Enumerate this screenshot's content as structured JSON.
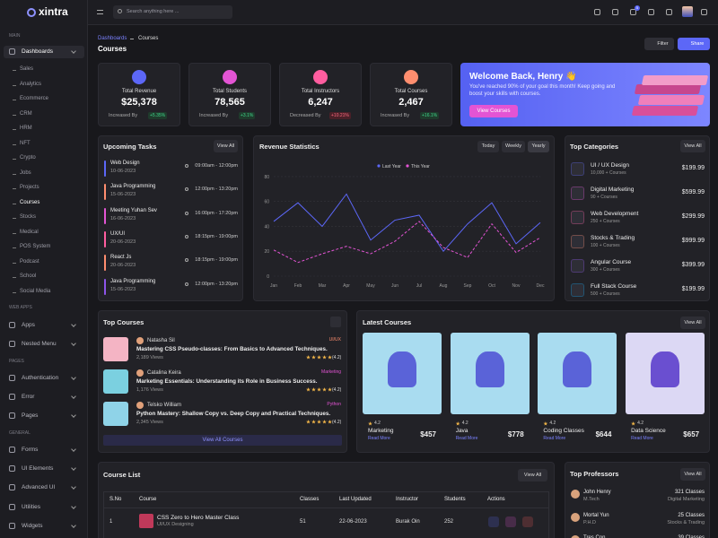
{
  "brand": "xintra",
  "sidebar": {
    "sections": [
      {
        "title": "MAIN",
        "items": [
          {
            "label": "Dashboards",
            "children": [
              "Sales",
              "Analytics",
              "Ecommerce",
              "CRM",
              "HRM",
              "NFT",
              "Crypto",
              "Jobs",
              "Projects",
              "Courses",
              "Stocks",
              "Medical",
              "POS System",
              "Podcast",
              "School",
              "Social Media"
            ]
          }
        ]
      },
      {
        "title": "WEB APPS",
        "items": [
          {
            "label": "Apps"
          },
          {
            "label": "Nested Menu"
          }
        ]
      },
      {
        "title": "PAGES",
        "items": [
          {
            "label": "Authentication"
          },
          {
            "label": "Error"
          },
          {
            "label": "Pages"
          }
        ]
      },
      {
        "title": "GENERAL",
        "items": [
          {
            "label": "Forms"
          },
          {
            "label": "UI Elements"
          },
          {
            "label": "Advanced UI"
          },
          {
            "label": "Utilities"
          },
          {
            "label": "Widgets"
          }
        ]
      }
    ]
  },
  "header": {
    "search_placeholder": "Search anything here ...",
    "cart_badge": "5"
  },
  "breadcrumb": [
    "Dashboards",
    "Courses"
  ],
  "page_title": "Courses",
  "actions": [
    "Filter",
    "Share"
  ],
  "stats": [
    {
      "label": "Total Revenue",
      "value": "$25,378",
      "change_label": "Increased By",
      "change": "+5.35%"
    },
    {
      "label": "Total Students",
      "value": "78,565",
      "change_label": "Increased By",
      "change": "+3.1%"
    },
    {
      "label": "Total Instructors",
      "value": "6,247",
      "change_label": "Decreased By",
      "change": "+10.21%"
    },
    {
      "label": "Total Courses",
      "value": "2,467",
      "change_label": "Increased By",
      "change": "+16.1%"
    }
  ],
  "welcome": {
    "title": "Welcome Back, Henry 👋",
    "text": "You've reached 90% of your goal this month! Keep going and boost your skills with courses.",
    "button": "View Courses"
  },
  "upcoming_tasks": {
    "title": "Upcoming Tasks",
    "button": "View All",
    "items": [
      {
        "name": "Web Design",
        "date": "10-06-2023",
        "time": "09:00am - 12:00pm"
      },
      {
        "name": "Java Programming",
        "date": "15-06-2023",
        "time": "12:00pm - 13:20pm"
      },
      {
        "name": "Meeting Yuhan Sev",
        "date": "16-06-2023",
        "time": "16:00pm - 17:20pm"
      },
      {
        "name": "UX/UI",
        "date": "20-06-2023",
        "time": "18:15pm - 19:00pm"
      },
      {
        "name": "React Js",
        "date": "20-06-2023",
        "time": "18:15pm - 19:00pm"
      },
      {
        "name": "Java Programming",
        "date": "15-06-2023",
        "time": "12:00pm - 13:20pm"
      }
    ]
  },
  "revenue_tabs": [
    "Today",
    "Weekly",
    "Yearly"
  ],
  "chart_data": {
    "type": "line",
    "title": "Revenue Statistics",
    "x": [
      "Jan",
      "Feb",
      "Mar",
      "Apr",
      "May",
      "Jun",
      "Jul",
      "Aug",
      "Sep",
      "Oct",
      "Nov",
      "Dec"
    ],
    "series": [
      {
        "name": "Last Year",
        "color": "#5c67f7",
        "dashed": false,
        "values": [
          44,
          59,
          40,
          66,
          29,
          45,
          49,
          20,
          42,
          59,
          26,
          43
        ]
      },
      {
        "name": "This Year",
        "color": "#e354d4",
        "dashed": true,
        "values": [
          21,
          11,
          18,
          24,
          18,
          28,
          44,
          23,
          15,
          42,
          19,
          31
        ]
      }
    ],
    "ylim": [
      0,
      85
    ],
    "yticks": [
      0,
      20,
      40,
      60,
      80
    ],
    "grid": true
  },
  "top_categories": {
    "title": "Top Categories",
    "button": "View All",
    "items": [
      {
        "name": "UI / UX Design",
        "courses": "10,000 + Courses",
        "price": "$199.99"
      },
      {
        "name": "Digital Marketing",
        "courses": "90 + Courses",
        "price": "$599.99"
      },
      {
        "name": "Web Development",
        "courses": "250 + Courses",
        "price": "$299.99"
      },
      {
        "name": "Stocks & Trading",
        "courses": "100 + Courses",
        "price": "$999.99"
      },
      {
        "name": "Angular Course",
        "courses": "300 + Courses",
        "price": "$399.99"
      },
      {
        "name": "Full Stack Course",
        "courses": "500 + Courses",
        "price": "$199.99"
      }
    ]
  },
  "top_courses": {
    "title": "Top Courses",
    "button": "View All Courses",
    "items": [
      {
        "author": "Natasha Sil",
        "tag": "UI/UX",
        "title": "Mastering CSS Pseudo-classes: From Basics to Advanced Techniques.",
        "rating": "(4.2)",
        "views": "2,189 Views"
      },
      {
        "author": "Catalina Keira",
        "tag": "Marketing",
        "title": "Marketing Essentials: Understanding its Role in Business Success.",
        "rating": "(4.2)",
        "views": "1,176 Views"
      },
      {
        "author": "Telsko William",
        "tag": "Python",
        "title": "Python Mastery: Shallow Copy vs. Deep Copy and Practical Techniques.",
        "rating": "(4.2)",
        "views": "2,345 Views"
      }
    ]
  },
  "latest_courses": {
    "title": "Latest Courses",
    "button": "View All",
    "items": [
      {
        "name": "Marketing",
        "rating": "4.2",
        "link": "Read More",
        "price": "$457"
      },
      {
        "name": "Java",
        "rating": "4.2",
        "link": "Read More",
        "price": "$778"
      },
      {
        "name": "Coding Classes",
        "rating": "4.2",
        "link": "Read More",
        "price": "$644"
      },
      {
        "name": "Data Science",
        "rating": "4.2",
        "link": "Read More",
        "price": "$657"
      }
    ]
  },
  "course_list": {
    "title": "Course List",
    "button": "View All",
    "columns": [
      "S.No",
      "Course",
      "Classes",
      "Last Updated",
      "Instructor",
      "Students",
      "Actions"
    ],
    "rows": [
      {
        "sno": "1",
        "course": "CSS Zero to Hero Master Class",
        "category": "UI/UX Designing",
        "classes": "51",
        "updated": "22-06-2023",
        "instructor": "Burak Oin",
        "students": "252"
      }
    ]
  },
  "top_professors": {
    "title": "Top Professors",
    "button": "View All",
    "items": [
      {
        "name": "John Henry",
        "degree": "M.Tech",
        "classes": "321 Classes",
        "subject": "Digital Marketing"
      },
      {
        "name": "Mortal Yun",
        "degree": "P.H.D",
        "classes": "25 Classes",
        "subject": "Stocks & Trading"
      },
      {
        "name": "Tres Con",
        "classes": "39 Classes"
      }
    ]
  }
}
